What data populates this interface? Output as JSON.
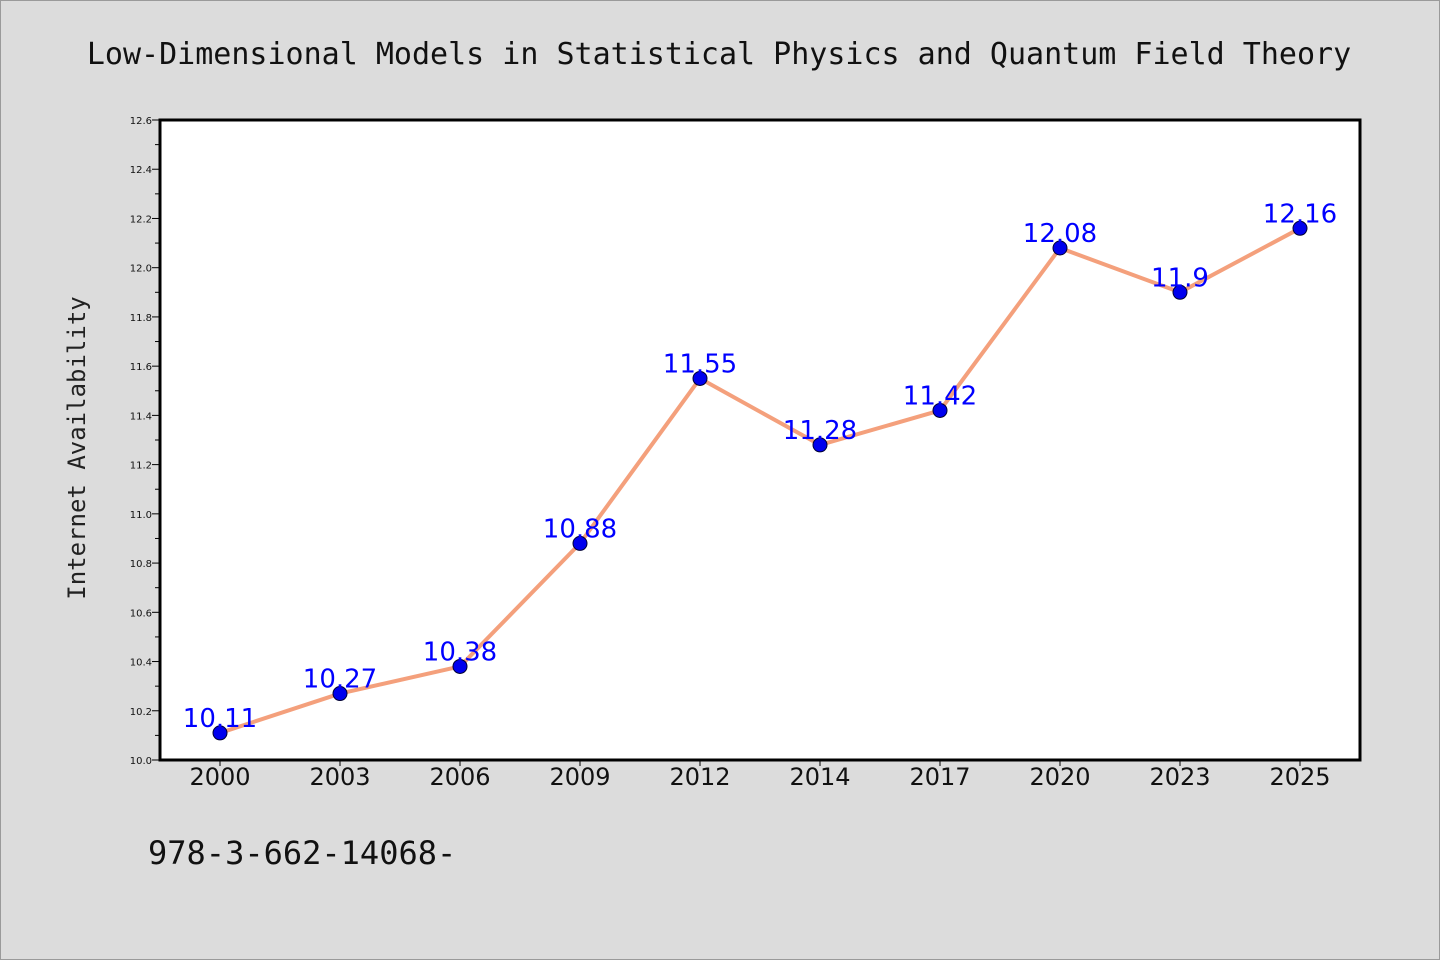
{
  "chart_data": {
    "type": "line",
    "title": "Low-Dimensional Models in Statistical Physics and Quantum Field Theory",
    "xlabel": "",
    "ylabel": "Internet Availability",
    "categories": [
      "2000",
      "2003",
      "2006",
      "2009",
      "2012",
      "2014",
      "2017",
      "2020",
      "2023",
      "2025"
    ],
    "series": [
      {
        "values": [
          10.11,
          10.27,
          10.38,
          10.88,
          11.55,
          11.28,
          11.42,
          12.08,
          11.9,
          12.16
        ],
        "data_labels": [
          "10.11",
          "10.27",
          "10.38",
          "10.88",
          "11.55",
          "11.28",
          "11.42",
          "12.08",
          "11.9",
          "12.16"
        ]
      }
    ],
    "ylim": [
      10.0,
      12.6
    ],
    "yticks": [
      "10.0",
      "10.2",
      "10.4",
      "10.6",
      "10.8",
      "11.0",
      "11.2",
      "11.4",
      "11.6",
      "11.8",
      "12.0",
      "12.2",
      "12.4",
      "12.6"
    ],
    "grid": false,
    "line_color": "#f4a07c",
    "marker_color": "#0000ee",
    "label_color": "#0000ff"
  },
  "footer": {
    "isbn": "978-3-662-14068-"
  }
}
